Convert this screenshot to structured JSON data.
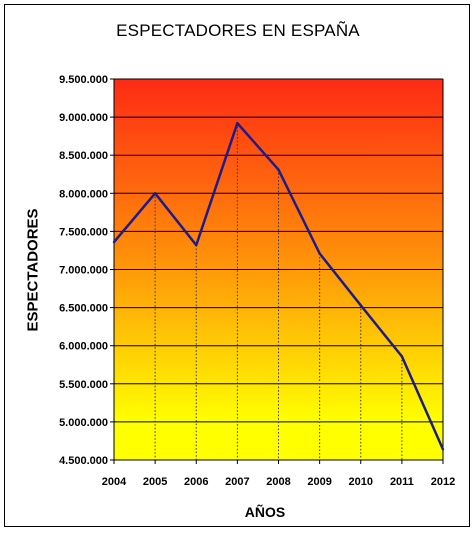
{
  "chart_data": {
    "type": "line",
    "title": "ESPECTADORES EN ESPAÑA",
    "xlabel": "AÑOS",
    "ylabel": "ESPECTADORES",
    "categories": [
      "2004",
      "2005",
      "2006",
      "2007",
      "2008",
      "2009",
      "2010",
      "2011",
      "2012"
    ],
    "series": [
      {
        "values": [
          7360000,
          8000000,
          7320000,
          8920000,
          8310000,
          7210000,
          6530000,
          5860000,
          4640000
        ]
      }
    ],
    "ylim": [
      4500000,
      9500000
    ],
    "yticks": [
      4500000,
      5000000,
      5500000,
      6000000,
      6500000,
      7000000,
      7500000,
      8000000,
      8500000,
      9000000,
      9500000
    ],
    "ytick_labels": [
      "4.500.000",
      "5.000.000",
      "5.500.000",
      "6.000.000",
      "6.500.000",
      "7.000.000",
      "7.500.000",
      "8.000.000",
      "8.500.000",
      "9.000.000",
      "9.500.000"
    ],
    "grid": true,
    "legend": "none",
    "colors": {
      "line": "#1c1c8c",
      "gradient_top": "#ff2a14",
      "gradient_mid": "#ff8c0a",
      "gradient_bottom": "#ffff00",
      "grid": "#000000"
    }
  }
}
